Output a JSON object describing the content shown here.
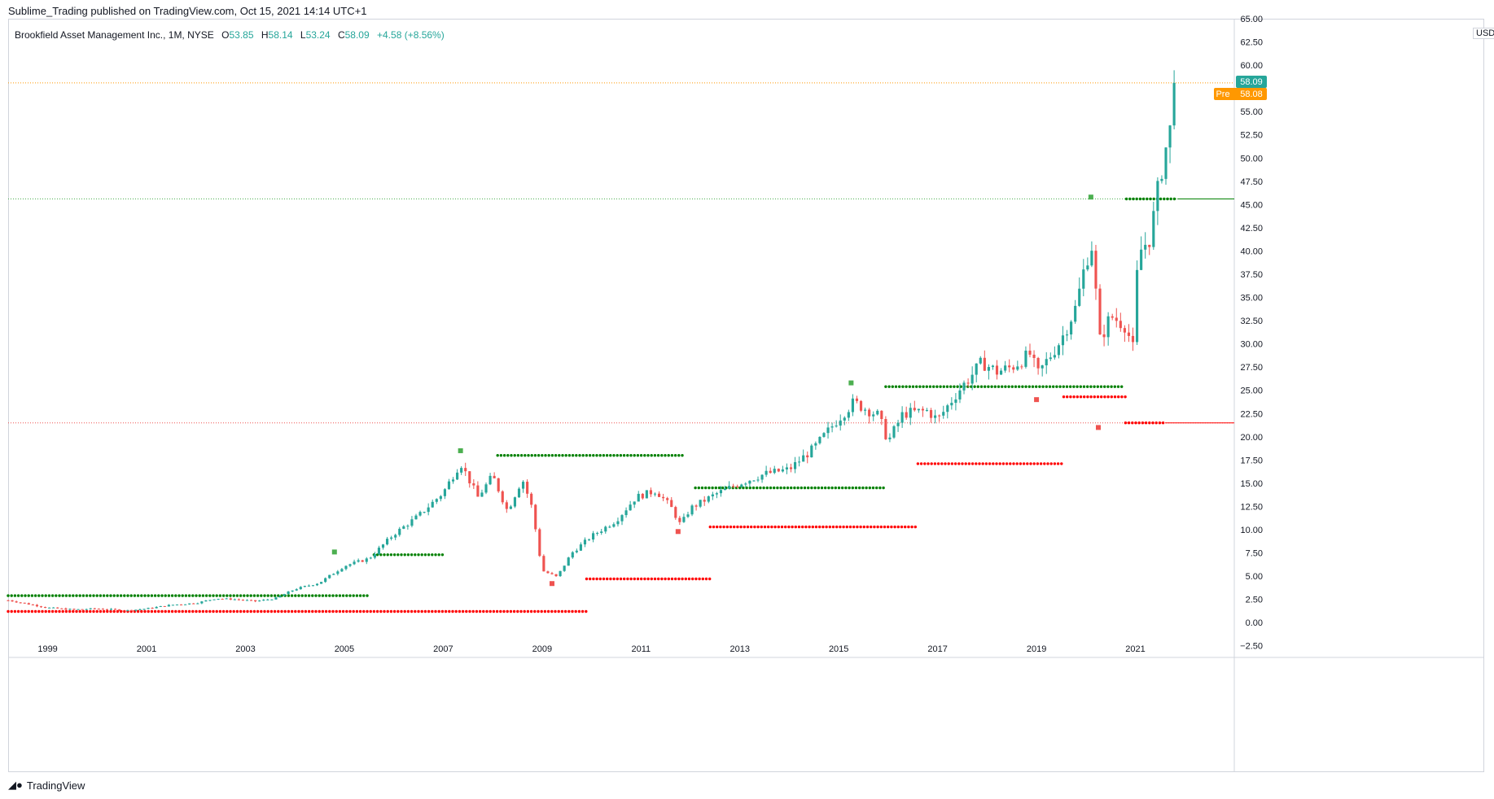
{
  "header": {
    "publisher_line": "Sublime_Trading published on TradingView.com, Oct 15, 2021 14:14 UTC+1"
  },
  "legend": {
    "symbol": "Brookfield Asset Management Inc., 1M, NYSE",
    "o_label": "O",
    "o_value": "53.85",
    "h_label": "H",
    "h_value": "58.14",
    "l_label": "L",
    "l_value": "53.24",
    "c_label": "C",
    "c_value": "58.09",
    "change": "+4.58 (+8.56%)"
  },
  "price_axis": {
    "currency": "USD"
  },
  "badges": {
    "last_price": "58.09",
    "pre_label": "Pre",
    "pre_price": "58.08"
  },
  "footer": {
    "brand": "TradingView"
  },
  "colors": {
    "up": "#26a69a",
    "down": "#ef5350",
    "support_dots": "#008000",
    "resistance_dots": "#ff0000",
    "last_line": "#ff9800",
    "pre_badge": "#ff9800"
  },
  "chart_data": {
    "type": "candlestick",
    "title": "Brookfield Asset Management Inc., 1M, NYSE",
    "ylim": [
      -3.75,
      65.0
    ],
    "y_ticks": [
      -2.5,
      0,
      2.5,
      5,
      7.5,
      10,
      12.5,
      15,
      17.5,
      20,
      22.5,
      25,
      27.5,
      30,
      32.5,
      35,
      37.5,
      40,
      42.5,
      45,
      47.5,
      50,
      52.5,
      55,
      57.5,
      60,
      62.5,
      65
    ],
    "y_tick_labels": [
      "−2.50",
      "0.00",
      "2.50",
      "5.00",
      "7.50",
      "10.00",
      "12.50",
      "15.00",
      "17.50",
      "20.00",
      "22.50",
      "25.00",
      "27.50",
      "30.00",
      "32.50",
      "35.00",
      "37.50",
      "40.00",
      "42.50",
      "45.00",
      "47.50",
      "50.00",
      "52.50",
      "55.00",
      "57.50",
      "60.00",
      "62.50",
      "65.00"
    ],
    "x_range_years": [
      1998.2,
      2023.0
    ],
    "x_ticks": [
      1999,
      2001,
      2003,
      2005,
      2007,
      2009,
      2011,
      2013,
      2015,
      2017,
      2019,
      2021
    ],
    "x_tick_labels": [
      "1999",
      "2001",
      "2003",
      "2005",
      "2007",
      "2009",
      "2011",
      "2013",
      "2015",
      "2017",
      "2019",
      "2021"
    ],
    "price_path": [
      [
        1998.2,
        2.4
      ],
      [
        1999.0,
        1.6
      ],
      [
        1999.5,
        1.4
      ],
      [
        2000.0,
        1.5
      ],
      [
        2000.6,
        1.3
      ],
      [
        2001.0,
        1.5
      ],
      [
        2001.5,
        1.9
      ],
      [
        2002.0,
        2.1
      ],
      [
        2002.4,
        2.6
      ],
      [
        2002.8,
        2.5
      ],
      [
        2003.2,
        2.3
      ],
      [
        2003.6,
        2.6
      ],
      [
        2004.0,
        3.6
      ],
      [
        2004.5,
        4.3
      ],
      [
        2005.0,
        6.1
      ],
      [
        2005.5,
        6.9
      ],
      [
        2006.0,
        9.5
      ],
      [
        2006.5,
        11.5
      ],
      [
        2007.0,
        14.0
      ],
      [
        2007.35,
        17.2
      ],
      [
        2007.7,
        13.5
      ],
      [
        2008.0,
        15.8
      ],
      [
        2008.3,
        12.0
      ],
      [
        2008.6,
        15.5
      ],
      [
        2008.8,
        12.3
      ],
      [
        2009.0,
        5.6
      ],
      [
        2009.3,
        4.9
      ],
      [
        2009.6,
        7.5
      ],
      [
        2010.0,
        9.3
      ],
      [
        2010.5,
        11.0
      ],
      [
        2010.9,
        13.5
      ],
      [
        2011.3,
        14.2
      ],
      [
        2011.6,
        12.5
      ],
      [
        2011.8,
        10.5
      ],
      [
        2012.0,
        12.3
      ],
      [
        2012.5,
        13.8
      ],
      [
        2013.0,
        15.0
      ],
      [
        2013.5,
        16.0
      ],
      [
        2014.0,
        16.5
      ],
      [
        2014.5,
        18.8
      ],
      [
        2015.0,
        22.0
      ],
      [
        2015.3,
        23.7
      ],
      [
        2015.8,
        22.3
      ],
      [
        2016.0,
        19.5
      ],
      [
        2016.3,
        22.5
      ],
      [
        2016.8,
        22.8
      ],
      [
        2017.0,
        21.8
      ],
      [
        2017.4,
        24.8
      ],
      [
        2017.9,
        28.0
      ],
      [
        2018.2,
        27.0
      ],
      [
        2018.5,
        27.5
      ],
      [
        2018.9,
        29.0
      ],
      [
        2019.0,
        26.5
      ],
      [
        2019.5,
        30.5
      ],
      [
        2019.8,
        34.0
      ],
      [
        2020.0,
        39.0
      ],
      [
        2020.15,
        41.0
      ],
      [
        2020.25,
        30.0
      ],
      [
        2020.5,
        33.0
      ],
      [
        2020.8,
        32.0
      ],
      [
        2020.95,
        29.5
      ],
      [
        2021.0,
        36.0
      ],
      [
        2021.1,
        40.0
      ],
      [
        2021.3,
        41.5
      ],
      [
        2021.5,
        48.0
      ],
      [
        2021.65,
        52.0
      ],
      [
        2021.75,
        53.9
      ],
      [
        2021.8,
        58.09
      ]
    ],
    "support_dots": [
      {
        "from": 1998.2,
        "to": 2005.5,
        "y": 2.9
      },
      {
        "from": 2005.6,
        "to": 2007.0,
        "y": 7.3
      },
      {
        "from": 2008.1,
        "to": 2011.9,
        "y": 18.0
      },
      {
        "from": 2012.1,
        "to": 2015.95,
        "y": 14.5
      },
      {
        "from": 2015.95,
        "to": 2020.75,
        "y": 25.4
      },
      {
        "from": 2020.82,
        "to": 2021.85,
        "y": 45.6
      }
    ],
    "resistance_dots": [
      {
        "from": 1998.2,
        "to": 2009.9,
        "y": 1.2
      },
      {
        "from": 2009.9,
        "to": 2012.4,
        "y": 4.7
      },
      {
        "from": 2012.4,
        "to": 2016.6,
        "y": 10.3
      },
      {
        "from": 2016.6,
        "to": 2019.55,
        "y": 17.1
      },
      {
        "from": 2019.55,
        "to": 2020.8,
        "y": 24.3
      },
      {
        "from": 2020.8,
        "to": 2021.6,
        "y": 21.5
      }
    ],
    "horizontal_lines": [
      {
        "y": 58.09,
        "color": "#ff9800",
        "style": "dotted"
      },
      {
        "y": 45.6,
        "color": "#4caf50",
        "style": "dotted"
      },
      {
        "y": 21.5,
        "color": "#ef5350",
        "style": "dotted"
      }
    ],
    "pivot_markers": [
      {
        "x": 2004.8,
        "y": 7.6,
        "kind": "high"
      },
      {
        "x": 2007.35,
        "y": 18.5,
        "kind": "high"
      },
      {
        "x": 2015.25,
        "y": 25.8,
        "kind": "high"
      },
      {
        "x": 2020.1,
        "y": 45.8,
        "kind": "high"
      },
      {
        "x": 2009.2,
        "y": 4.2,
        "kind": "low"
      },
      {
        "x": 2011.75,
        "y": 9.8,
        "kind": "low"
      },
      {
        "x": 2019.0,
        "y": 24.0,
        "kind": "low"
      },
      {
        "x": 2020.25,
        "y": 21.0,
        "kind": "low"
      }
    ]
  }
}
